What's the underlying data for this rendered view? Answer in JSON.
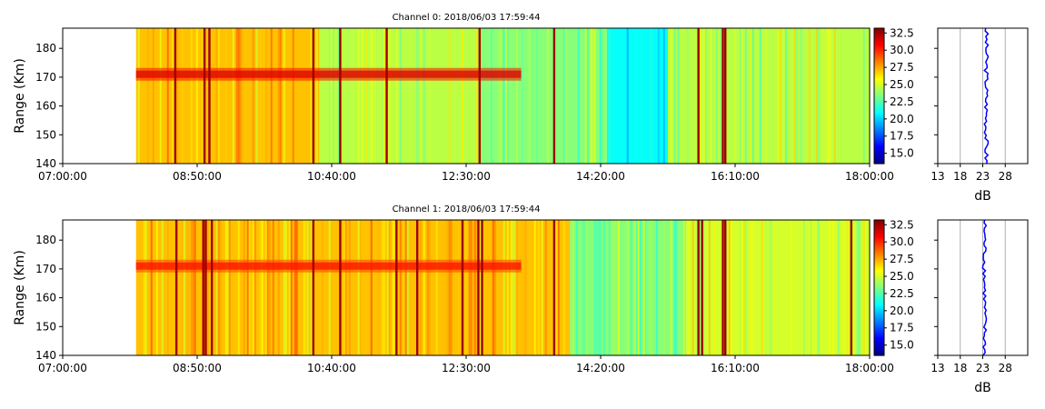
{
  "chart_data": [
    {
      "type": "heatmap",
      "title": "Channel 0: 2018/06/03 17:59:44",
      "ylabel": "Range (Km)",
      "xlabel": "",
      "x_tick_labels": [
        "07:00:00",
        "08:50:00",
        "10:40:00",
        "12:30:00",
        "14:20:00",
        "16:10:00",
        "18:00:00"
      ],
      "xlim": [
        "07:00:00",
        "18:00:00"
      ],
      "data_start": "08:00:00",
      "y_ticks": [
        140,
        150,
        160,
        170,
        180
      ],
      "ylim": [
        140,
        187
      ],
      "colorbar": {
        "colormap": "jet",
        "min": 13.5,
        "max": 33.2,
        "ticks": [
          "15.0",
          "17.5",
          "20.0",
          "22.5",
          "25.0",
          "27.5",
          "30.0",
          "32.5"
        ]
      },
      "bands": [
        {
          "start": "08:00:00",
          "end": "10:30:00",
          "level": 27.0
        },
        {
          "start": "10:30:00",
          "end": "12:40:00",
          "level": 24.5
        },
        {
          "start": "12:40:00",
          "end": "14:25:00",
          "level": 23.5
        },
        {
          "start": "14:25:00",
          "end": "15:15:00",
          "level": 21.0
        },
        {
          "start": "15:15:00",
          "end": "18:00:00",
          "level": 24.5
        }
      ],
      "echo_layer": {
        "start": "08:00:00",
        "end": "13:15:00",
        "range_km": 171,
        "level": 30.5
      },
      "spikes": [
        "08:32:00",
        "08:56:00",
        "09:00:00",
        "10:25:00",
        "10:47:00",
        "11:25:00",
        "12:41:00",
        "13:42:00",
        "15:40:00",
        "16:00:00",
        "16:02:00"
      ],
      "profile_panel": {
        "xlabel": "dB",
        "x_ticks": [
          13,
          18,
          23,
          28
        ],
        "xlim": [
          13,
          33
        ],
        "mean_db": 23.8
      }
    },
    {
      "type": "heatmap",
      "title": "Channel 1: 2018/06/03 17:59:44",
      "ylabel": "Range (Km)",
      "xlabel": "",
      "x_tick_labels": [
        "07:00:00",
        "08:50:00",
        "10:40:00",
        "12:30:00",
        "14:20:00",
        "16:10:00",
        "18:00:00"
      ],
      "xlim": [
        "07:00:00",
        "18:00:00"
      ],
      "data_start": "08:00:00",
      "y_ticks": [
        140,
        150,
        160,
        170,
        180
      ],
      "ylim": [
        140,
        187
      ],
      "colorbar": {
        "colormap": "jet",
        "min": 13.5,
        "max": 33.2,
        "ticks": [
          "15.0",
          "17.5",
          "20.0",
          "22.5",
          "25.0",
          "27.5",
          "30.0",
          "32.5"
        ]
      },
      "bands": [
        {
          "start": "08:00:00",
          "end": "13:55:00",
          "level": 27.0
        },
        {
          "start": "13:55:00",
          "end": "15:30:00",
          "level": 23.5
        },
        {
          "start": "15:30:00",
          "end": "18:00:00",
          "level": 25.0
        }
      ],
      "echo_layer": {
        "start": "08:00:00",
        "end": "13:15:00",
        "range_km": 171,
        "level": 29.5
      },
      "spikes": [
        "08:33:00",
        "08:55:00",
        "08:57:00",
        "09:02:00",
        "10:25:00",
        "10:47:00",
        "11:33:00",
        "11:50:00",
        "12:27:00",
        "12:40:00",
        "12:43:00",
        "13:42:00",
        "15:40:00",
        "15:43:00",
        "16:00:00",
        "16:02:00",
        "17:45:00"
      ],
      "profile_panel": {
        "xlabel": "dB",
        "x_ticks": [
          13,
          18,
          23,
          28
        ],
        "xlim": [
          13,
          33
        ],
        "mean_db": 23.4
      }
    }
  ]
}
